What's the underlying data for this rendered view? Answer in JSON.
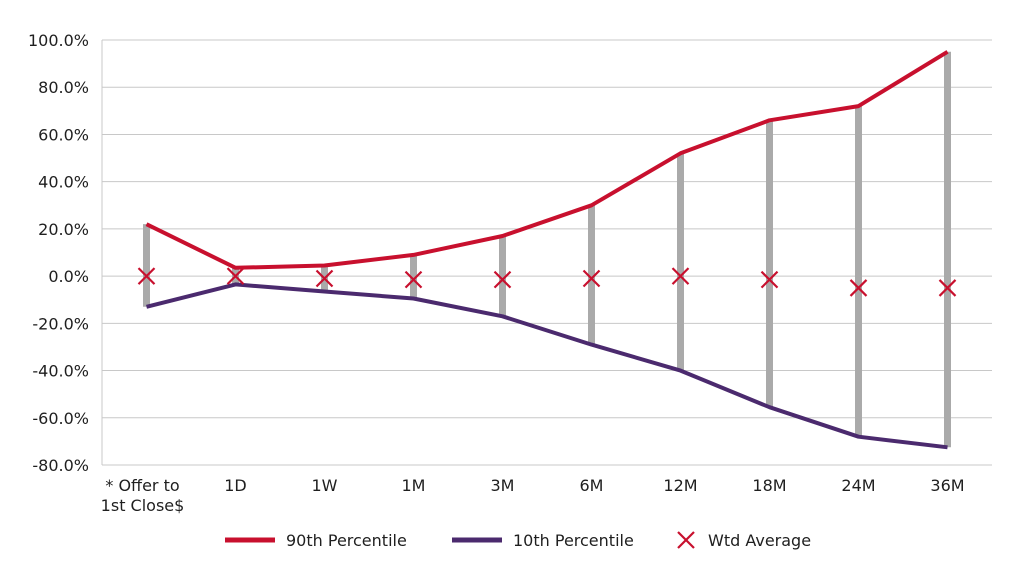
{
  "chart_data": {
    "type": "line",
    "categories": [
      "* Offer to\n1st Close$",
      "1D",
      "1W",
      "1M",
      "3M",
      "6M",
      "12M",
      "18M",
      "24M",
      "36M"
    ],
    "series": [
      {
        "name": "90th Percentile",
        "values": [
          22.0,
          3.5,
          4.5,
          9.0,
          17.0,
          30.0,
          52.0,
          66.0,
          72.0,
          95.0
        ]
      },
      {
        "name": "10th Percentile",
        "values": [
          -13.0,
          -3.5,
          -6.5,
          -9.5,
          -17.0,
          -29.0,
          -40.0,
          -55.5,
          -68.0,
          -72.5
        ]
      },
      {
        "name": "Wtd Average",
        "values": [
          0.0,
          0.0,
          -1.0,
          -1.5,
          -1.5,
          -1.0,
          0.0,
          -1.5,
          -5.0,
          -5.0
        ]
      }
    ],
    "ylim": [
      -80,
      100
    ],
    "yticks": [
      "100.0%",
      "80.0%",
      "60.0%",
      "40.0%",
      "20.0%",
      "0.0%",
      "-20.0%",
      "-40.0%",
      "-60.0%",
      "-80.0%"
    ],
    "grid": true,
    "legend_position": "bottom",
    "colors": {
      "p90": "#c8102e",
      "p10": "#4b2a6e",
      "avg": "#c8102e",
      "range": "#aaaaaa",
      "grid": "#c8c8c8"
    }
  }
}
